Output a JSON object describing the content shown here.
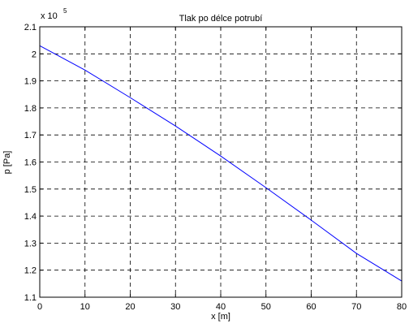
{
  "chart_data": {
    "type": "line",
    "title": "Tlak po délce potrubí",
    "xlabel": "x [m]",
    "ylabel": "p [Pa]",
    "y_exponent_label": {
      "base": "x 10",
      "power": "5"
    },
    "xlim": [
      0,
      80
    ],
    "ylim": [
      1.1,
      2.1
    ],
    "x_ticks": [
      0,
      10,
      20,
      30,
      40,
      50,
      60,
      70,
      80
    ],
    "y_ticks": [
      1.1,
      1.2,
      1.3,
      1.4,
      1.5,
      1.6,
      1.7,
      1.8,
      1.9,
      2,
      2.1
    ],
    "x_tick_labels": [
      "0",
      "10",
      "20",
      "30",
      "40",
      "50",
      "60",
      "70",
      "80"
    ],
    "y_tick_labels": [
      "1.1",
      "1.2",
      "1.3",
      "1.4",
      "1.5",
      "1.6",
      "1.7",
      "1.8",
      "1.9",
      "2",
      "2.1"
    ],
    "grid": true,
    "grid_style": "dashed",
    "series": [
      {
        "color": "#0000ff",
        "x": [
          0,
          10,
          20,
          30,
          40,
          50,
          60,
          70,
          80
        ],
        "y": [
          2.03,
          1.94,
          1.838,
          1.733,
          1.622,
          1.505,
          1.385,
          1.262,
          1.16
        ]
      }
    ]
  }
}
